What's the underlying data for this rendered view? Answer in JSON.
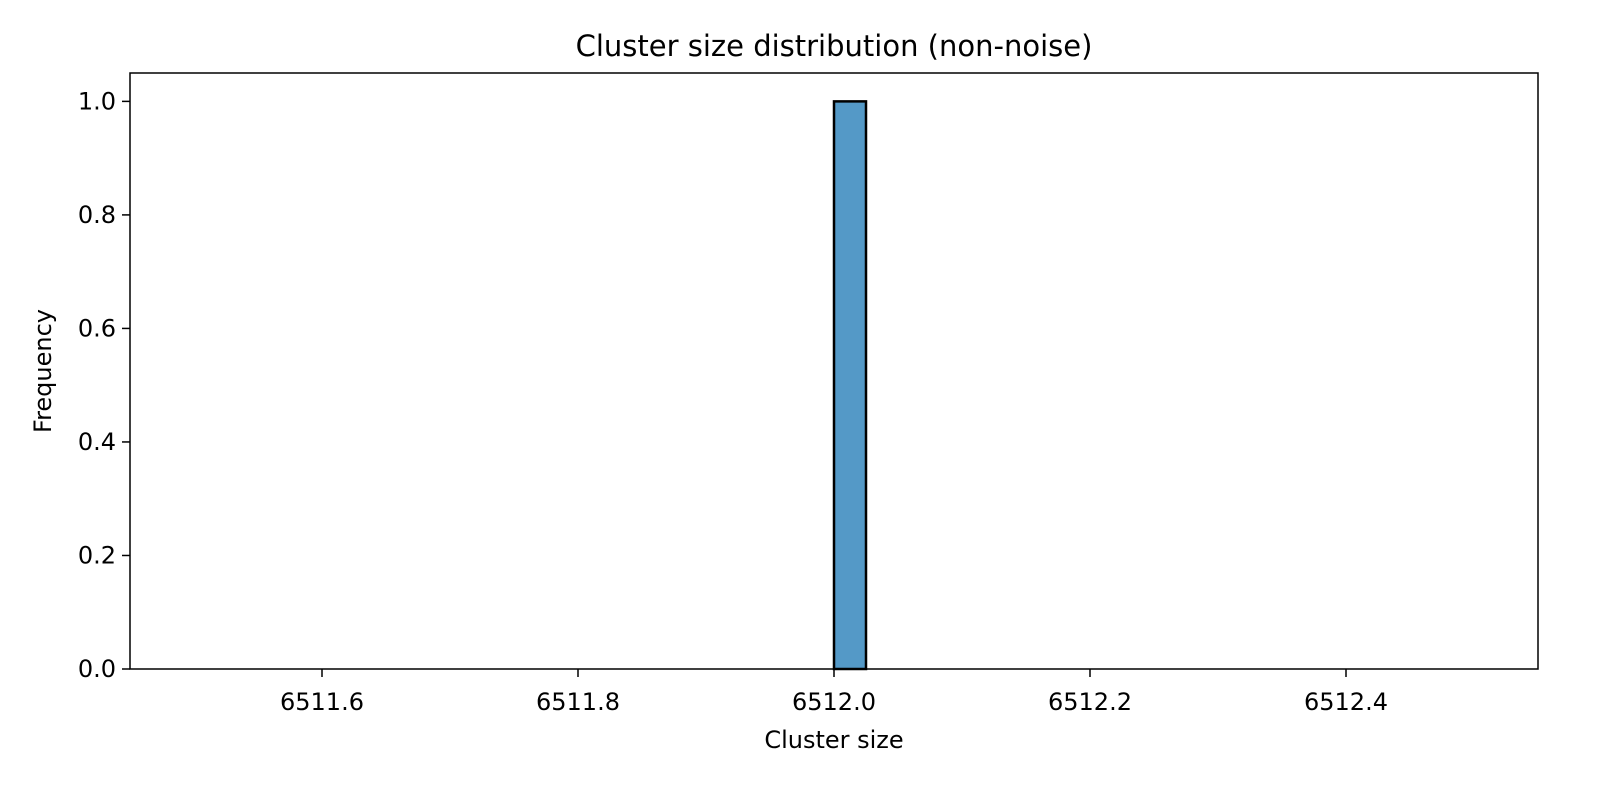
{
  "chart_data": {
    "type": "bar",
    "title": "Cluster size distribution (non-noise)",
    "xlabel": "Cluster size",
    "ylabel": "Frequency",
    "xlim": [
      6511.45,
      6512.55
    ],
    "ylim": [
      0,
      1.05
    ],
    "xticks": [
      6511.6,
      6511.8,
      6512.0,
      6512.2,
      6512.4
    ],
    "xtick_labels": [
      "6511.6",
      "6511.8",
      "6512.0",
      "6512.2",
      "6512.4"
    ],
    "yticks": [
      0.0,
      0.2,
      0.4,
      0.6,
      0.8,
      1.0
    ],
    "ytick_labels": [
      "0.0",
      "0.2",
      "0.4",
      "0.6",
      "0.8",
      "1.0"
    ],
    "bins": [
      {
        "x_start": 6512.0,
        "x_end": 6512.025,
        "value": 1
      }
    ],
    "grid": false,
    "bar_color": "#5499c7",
    "edge_color": "#000000"
  }
}
